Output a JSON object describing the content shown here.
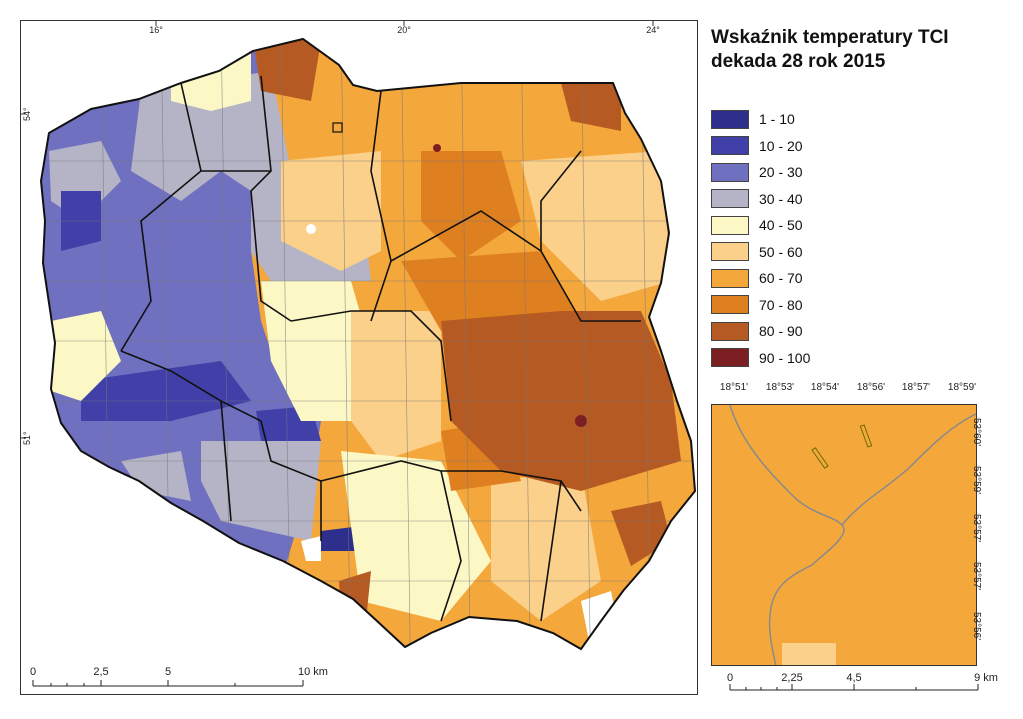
{
  "title_line1": "Wskaźnik temperatury TCI",
  "title_line2": "dekada 28 rok 2015",
  "graticule": {
    "lon_labels": [
      "16°",
      "20°",
      "24°"
    ],
    "lat_labels": [
      "54°",
      "51°"
    ]
  },
  "legend": [
    {
      "label": "1 - 10",
      "color": "#2E2E8C"
    },
    {
      "label": "10 - 20",
      "color": "#4040A8"
    },
    {
      "label": "20 - 30",
      "color": "#7070C0"
    },
    {
      "label": "30 - 40",
      "color": "#B4B4C6"
    },
    {
      "label": "40 - 50",
      "color": "#FCF8C6"
    },
    {
      "label": "50 - 60",
      "color": "#FBD08A"
    },
    {
      "label": "60 - 70",
      "color": "#F4A73B"
    },
    {
      "label": "70 - 80",
      "color": "#DE8020"
    },
    {
      "label": "80 - 90",
      "color": "#B55A22"
    },
    {
      "label": "90 - 100",
      "color": "#7C1F22"
    }
  ],
  "main_scale": {
    "labels": [
      "0",
      "2,5",
      "5",
      "10 km"
    ]
  },
  "inset": {
    "top_labels": [
      "18°51'",
      "18°53'",
      "18°54'",
      "18°56'",
      "18°57'",
      "18°59'"
    ],
    "right_labels": [
      "53°60'",
      "53°59'",
      "53°57'",
      "53°57'",
      "53°56'"
    ],
    "scale_labels": [
      "0",
      "2,25",
      "4,5",
      "9 km"
    ],
    "fill_class": "60 - 70"
  }
}
